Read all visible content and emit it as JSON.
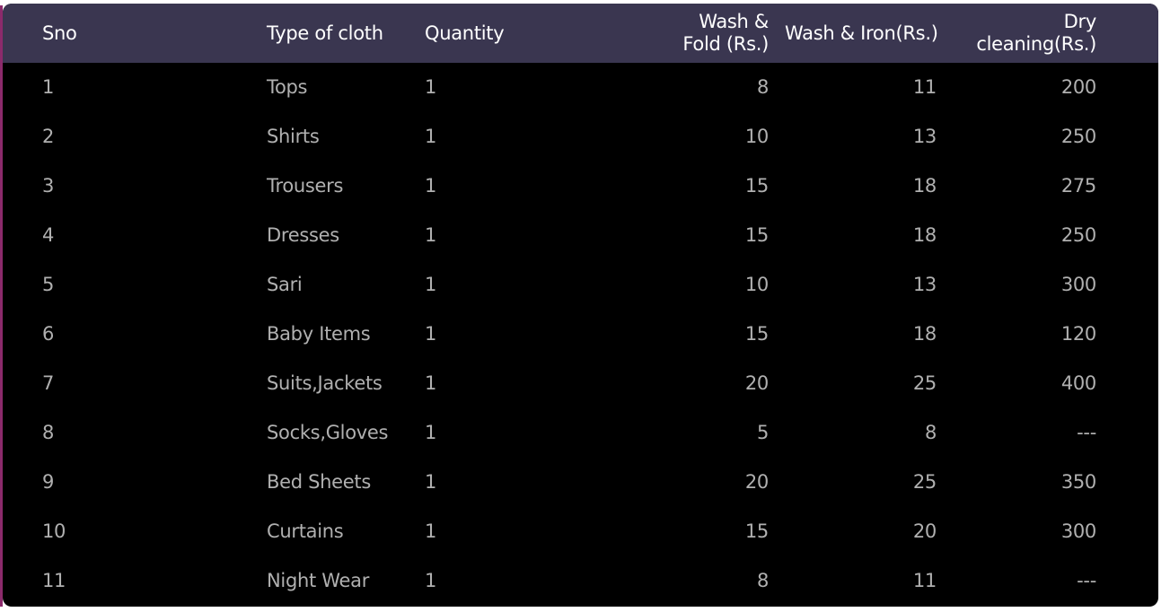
{
  "table": {
    "columns": [
      "Sno",
      "Type of cloth",
      "Quantity",
      "Wash &\nFold (Rs.)",
      "Wash & Iron(Rs.)",
      "Dry\ncleaning(Rs.)"
    ],
    "header": {
      "sno": "Sno",
      "type": "Type of cloth",
      "quantity": "Quantity",
      "wash_fold_line1": "Wash &",
      "wash_fold_line2": "Fold (Rs.)",
      "wash_iron": "Wash & Iron(Rs.)",
      "dry_line1": "Dry",
      "dry_line2": "cleaning(Rs.)"
    },
    "rows": [
      {
        "sno": "1",
        "type": "Tops",
        "quantity": "1",
        "wash_fold": "8",
        "wash_iron": "11",
        "dry_cleaning": "200"
      },
      {
        "sno": "2",
        "type": "Shirts",
        "quantity": "1",
        "wash_fold": "10",
        "wash_iron": "13",
        "dry_cleaning": "250"
      },
      {
        "sno": "3",
        "type": "Trousers",
        "quantity": "1",
        "wash_fold": "15",
        "wash_iron": "18",
        "dry_cleaning": "275"
      },
      {
        "sno": "4",
        "type": "Dresses",
        "quantity": "1",
        "wash_fold": "15",
        "wash_iron": "18",
        "dry_cleaning": "250"
      },
      {
        "sno": "5",
        "type": "Sari",
        "quantity": "1",
        "wash_fold": "10",
        "wash_iron": "13",
        "dry_cleaning": "300"
      },
      {
        "sno": "6",
        "type": "Baby Items",
        "quantity": "1",
        "wash_fold": "15",
        "wash_iron": "18",
        "dry_cleaning": "120"
      },
      {
        "sno": "7",
        "type": "Suits,Jackets",
        "quantity": "1",
        "wash_fold": "20",
        "wash_iron": "25",
        "dry_cleaning": "400"
      },
      {
        "sno": "8",
        "type": "Socks,Gloves",
        "quantity": "1",
        "wash_fold": "5",
        "wash_iron": "8",
        "dry_cleaning": "---"
      },
      {
        "sno": "9",
        "type": "Bed Sheets",
        "quantity": "1",
        "wash_fold": "20",
        "wash_iron": "25",
        "dry_cleaning": "350"
      },
      {
        "sno": "10",
        "type": "Curtains",
        "quantity": "1",
        "wash_fold": "15",
        "wash_iron": "20",
        "dry_cleaning": "300"
      },
      {
        "sno": "11",
        "type": "Night Wear",
        "quantity": "1",
        "wash_fold": "8",
        "wash_iron": "11",
        "dry_cleaning": "---"
      }
    ]
  },
  "colors": {
    "header_bg": "#3a3650",
    "body_bg": "#000000",
    "header_text": "#ffffff",
    "body_text": "#b0b0b0",
    "accent_edge": "#8b2a6b"
  }
}
